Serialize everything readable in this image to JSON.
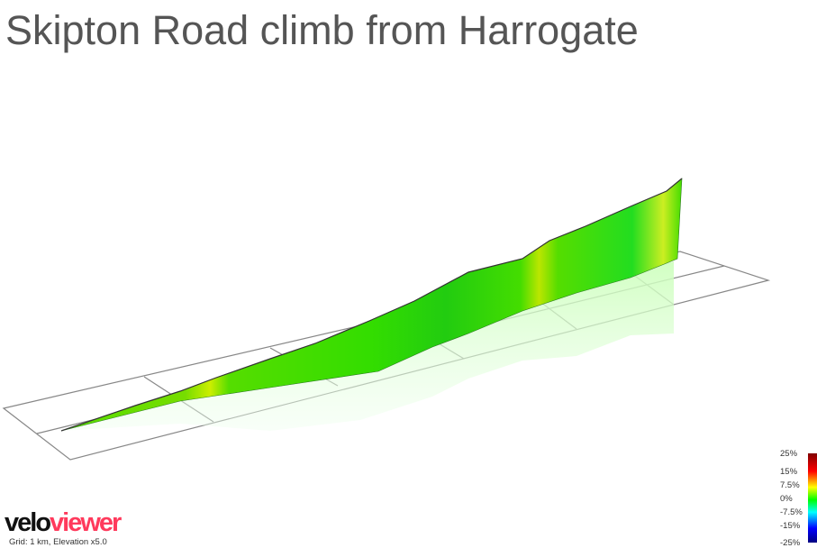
{
  "title": "Skipton Road climb from Harrogate",
  "legend": {
    "labels": [
      "25%",
      "15%",
      "7.5%",
      "0%",
      "-7.5%",
      "-15%",
      "-25%"
    ],
    "colors": [
      "#800000",
      "#ff0000",
      "#ffff00",
      "#00ff00",
      "#00ffff",
      "#0000ff",
      "#000080"
    ]
  },
  "logo": {
    "part1": "velo",
    "part2": "viewer",
    "colors": {
      "part1": "#111111",
      "part2": "#ff3a5c"
    }
  },
  "grid_note": "Grid: 1 km, Elevation x5.0",
  "colors": {
    "profile_main": "#44dd00",
    "grid_line": "#888888"
  }
}
